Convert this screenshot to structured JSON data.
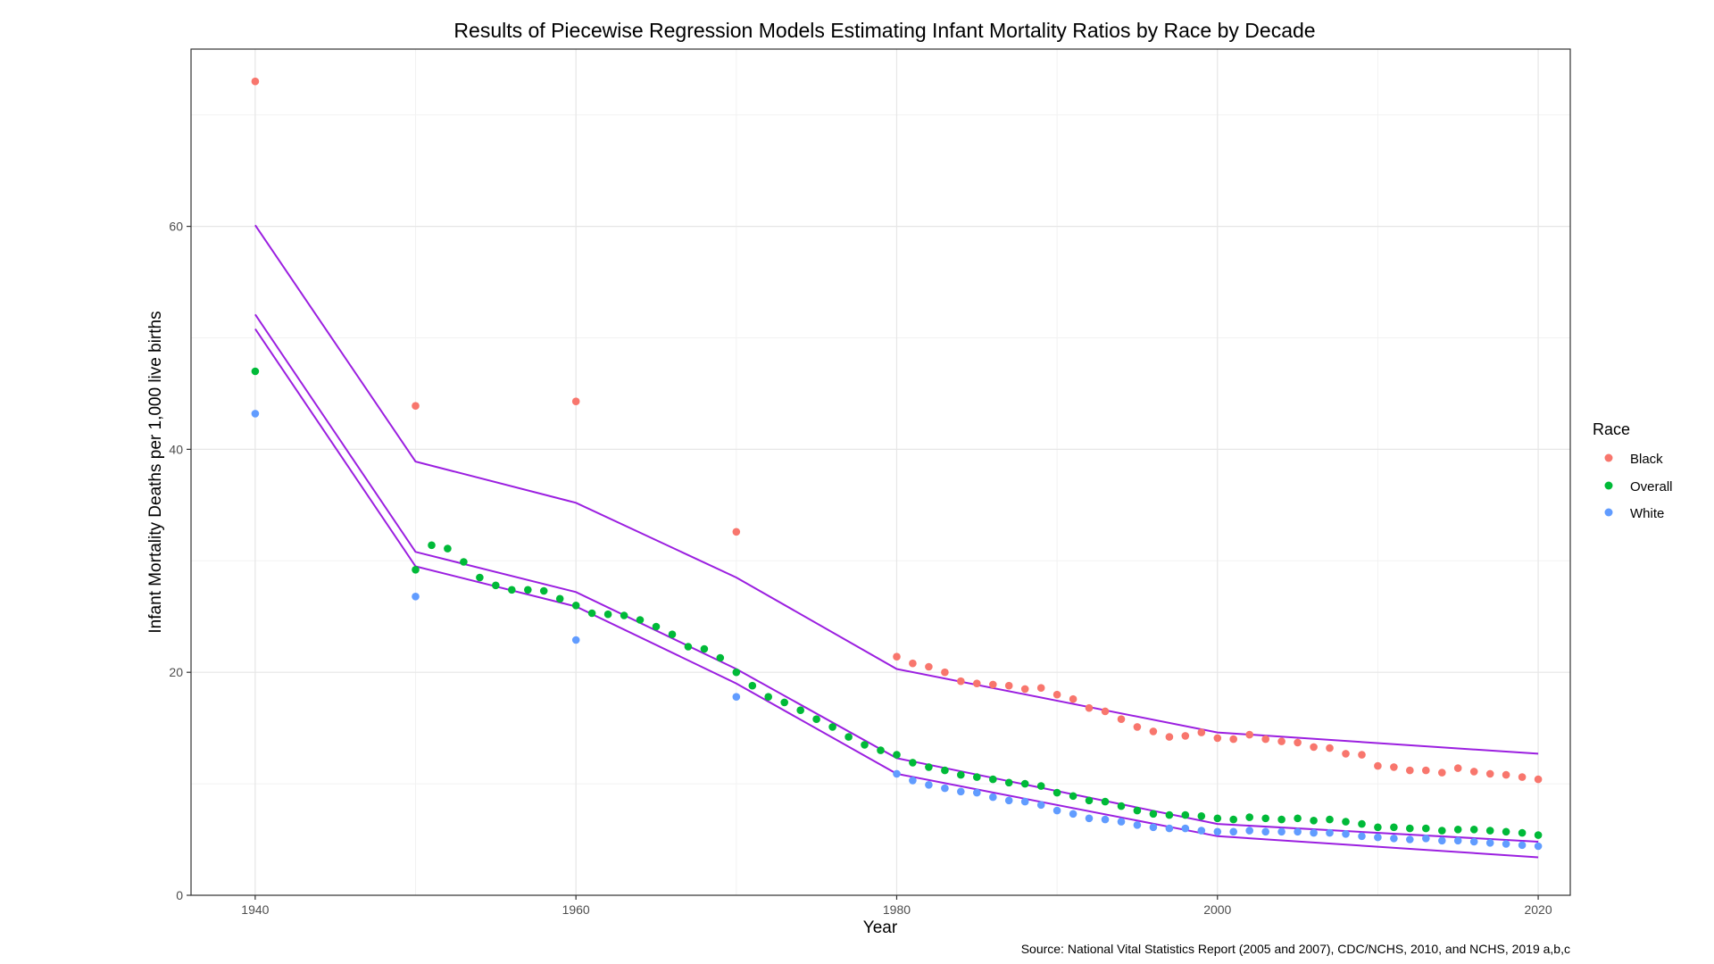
{
  "chart_data": {
    "type": "scatter",
    "title": "Results of Piecewise Regression Models Estimating Infant Mortality Ratios by Race by Decade",
    "xlabel": "Year",
    "ylabel": "Infant Mortality Deaths per 1,000 live births",
    "caption": "Source: National Vital Statistics Report (2005 and 2007), CDC/NCHS, 2010, and NCHS, 2019 a,b,c",
    "xlim": [
      1936,
      2022
    ],
    "ylim": [
      0,
      75.9
    ],
    "x_ticks": [
      1940,
      1960,
      1980,
      2000,
      2020
    ],
    "x_tick_labels": [
      "1940",
      "1960",
      "1980",
      "2000",
      "2020"
    ],
    "y_ticks": [
      0,
      20,
      40,
      60
    ],
    "y_tick_labels": [
      "0",
      "20",
      "40",
      "60"
    ],
    "grid": true,
    "legend": {
      "title": "Race",
      "position": "right",
      "entries": [
        {
          "label": "Black",
          "color": "#F8766D"
        },
        {
          "label": "Overall",
          "color": "#00BA38"
        },
        {
          "label": "White",
          "color": "#619CFF"
        }
      ]
    },
    "series": [
      {
        "name": "Black",
        "color": "#F8766D",
        "x": [
          1940,
          1950,
          1960,
          1970,
          1980,
          1981,
          1982,
          1983,
          1984,
          1985,
          1986,
          1987,
          1988,
          1989,
          1990,
          1991,
          1992,
          1993,
          1994,
          1995,
          1996,
          1997,
          1998,
          1999,
          2000,
          2001,
          2002,
          2003,
          2004,
          2005,
          2006,
          2007,
          2008,
          2009,
          2010,
          2011,
          2012,
          2013,
          2014,
          2015,
          2016,
          2017,
          2018,
          2019,
          2020
        ],
        "y": [
          73.0,
          43.9,
          44.3,
          32.6,
          21.4,
          20.8,
          20.5,
          20.0,
          19.2,
          19.0,
          18.9,
          18.8,
          18.5,
          18.6,
          18.0,
          17.6,
          16.8,
          16.5,
          15.8,
          15.1,
          14.7,
          14.2,
          14.3,
          14.6,
          14.1,
          14.0,
          14.4,
          14.0,
          13.8,
          13.7,
          13.3,
          13.2,
          12.7,
          12.6,
          11.6,
          11.5,
          11.2,
          11.2,
          11.0,
          11.4,
          11.1,
          10.9,
          10.8,
          10.6,
          10.4
        ]
      },
      {
        "name": "Overall",
        "color": "#00BA38",
        "x": [
          1940,
          1950,
          1951,
          1952,
          1953,
          1954,
          1955,
          1956,
          1957,
          1958,
          1959,
          1960,
          1961,
          1962,
          1963,
          1964,
          1965,
          1966,
          1967,
          1968,
          1969,
          1970,
          1971,
          1972,
          1973,
          1974,
          1975,
          1976,
          1977,
          1978,
          1979,
          1980,
          1981,
          1982,
          1983,
          1984,
          1985,
          1986,
          1987,
          1988,
          1989,
          1990,
          1991,
          1992,
          1993,
          1994,
          1995,
          1996,
          1997,
          1998,
          1999,
          2000,
          2001,
          2002,
          2003,
          2004,
          2005,
          2006,
          2007,
          2008,
          2009,
          2010,
          2011,
          2012,
          2013,
          2014,
          2015,
          2016,
          2017,
          2018,
          2019,
          2020
        ],
        "y": [
          47.0,
          29.2,
          31.4,
          31.1,
          29.9,
          28.5,
          27.8,
          27.4,
          27.4,
          27.3,
          26.6,
          26.0,
          25.3,
          25.2,
          25.1,
          24.7,
          24.1,
          23.4,
          22.3,
          22.1,
          21.3,
          20.0,
          18.8,
          17.8,
          17.3,
          16.6,
          15.8,
          15.1,
          14.2,
          13.5,
          13.0,
          12.6,
          11.9,
          11.5,
          11.2,
          10.8,
          10.6,
          10.4,
          10.1,
          10.0,
          9.8,
          9.2,
          8.9,
          8.5,
          8.4,
          8.0,
          7.6,
          7.3,
          7.2,
          7.2,
          7.1,
          6.9,
          6.8,
          7.0,
          6.9,
          6.8,
          6.9,
          6.7,
          6.8,
          6.6,
          6.4,
          6.1,
          6.1,
          6.0,
          6.0,
          5.8,
          5.9,
          5.9,
          5.8,
          5.7,
          5.6,
          5.4
        ]
      },
      {
        "name": "White",
        "color": "#619CFF",
        "x": [
          1940,
          1950,
          1960,
          1970,
          1980,
          1981,
          1982,
          1983,
          1984,
          1985,
          1986,
          1987,
          1988,
          1989,
          1990,
          1991,
          1992,
          1993,
          1994,
          1995,
          1996,
          1997,
          1998,
          1999,
          2000,
          2001,
          2002,
          2003,
          2004,
          2005,
          2006,
          2007,
          2008,
          2009,
          2010,
          2011,
          2012,
          2013,
          2014,
          2015,
          2016,
          2017,
          2018,
          2019,
          2020
        ],
        "y": [
          43.2,
          26.8,
          22.9,
          17.8,
          10.9,
          10.3,
          9.9,
          9.6,
          9.3,
          9.2,
          8.8,
          8.5,
          8.4,
          8.1,
          7.6,
          7.3,
          6.9,
          6.8,
          6.6,
          6.3,
          6.1,
          6.0,
          6.0,
          5.8,
          5.7,
          5.7,
          5.8,
          5.7,
          5.7,
          5.7,
          5.6,
          5.6,
          5.5,
          5.3,
          5.2,
          5.1,
          5.0,
          5.1,
          4.9,
          4.9,
          4.8,
          4.7,
          4.6,
          4.5,
          4.4
        ]
      }
    ],
    "fitted_lines": [
      {
        "name": "Black fit",
        "color": "#9B1FE0",
        "x": [
          1940,
          1950,
          1960,
          1970,
          1980,
          2000,
          2020
        ],
        "y": [
          60.1,
          38.9,
          35.2,
          28.5,
          20.3,
          14.6,
          12.7
        ]
      },
      {
        "name": "Overall fit",
        "color": "#9B1FE0",
        "x": [
          1940,
          1950,
          1960,
          1970,
          1980,
          2000,
          2020
        ],
        "y": [
          52.1,
          30.8,
          27.2,
          20.3,
          12.3,
          6.4,
          4.8
        ]
      },
      {
        "name": "White fit",
        "color": "#9B1FE0",
        "x": [
          1940,
          1950,
          1960,
          1970,
          1980,
          2000,
          2020
        ],
        "y": [
          50.8,
          29.5,
          25.9,
          19.0,
          10.9,
          5.3,
          3.4
        ]
      }
    ]
  }
}
